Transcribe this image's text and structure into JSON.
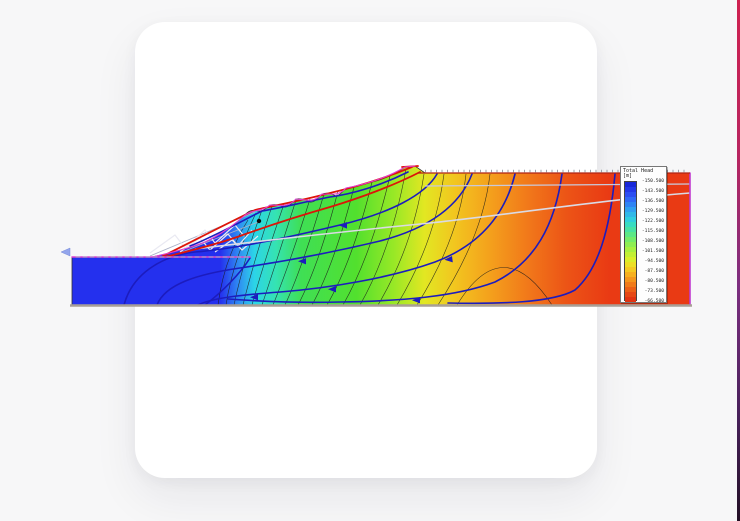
{
  "window": {
    "background_color": "#f7f7f8",
    "card_color": "#ffffff",
    "edge_stripe_colors": [
      "#cf2150",
      "#7c2e80",
      "#241026"
    ]
  },
  "legend": {
    "title": "Total Head",
    "unit": "[m]",
    "labels": [
      "-150.500",
      "-143.500",
      "-136.500",
      "-129.500",
      "-122.500",
      "-115.500",
      "-108.500",
      "-101.500",
      "-94.500",
      "-87.500",
      "-80.500",
      "-73.500",
      "-66.500"
    ],
    "colors": [
      "#1828d8",
      "#2238e8",
      "#2b4ef2",
      "#2f68f6",
      "#2f84f4",
      "#30a0f0",
      "#30b8e8",
      "#30cede",
      "#38dcc2",
      "#48e2a4",
      "#5ce886",
      "#74ec6a",
      "#8eee52",
      "#a8f041",
      "#c2f034",
      "#daee2b",
      "#ecdf25",
      "#f4c922",
      "#f6b01f",
      "#f4961d",
      "#f07b1a",
      "#ec6017",
      "#e64815",
      "#e23412"
    ]
  },
  "chart_data": {
    "type": "heatmap",
    "subtype": "contour-fill-cross-section",
    "title": "Total Head",
    "unit": "m",
    "legend_position": "right",
    "levels": [
      -150.5,
      -143.5,
      -136.5,
      -129.5,
      -122.5,
      -115.5,
      -108.5,
      -101.5,
      -94.5,
      -87.5,
      -80.5,
      -73.5,
      -66.5
    ],
    "level_step": 7,
    "orientation": "head increases from left (blue, -150.5) to right (red, -66.5) across an embankment slope cross-section",
    "overlays": [
      "equipotential/flow lines (dark blue, arrows toward lower-left)",
      "slip surface arcs (red)",
      "phreatic line (light gray)",
      "reservoir water level line (magenta, dashed gray)",
      "boundary hatching along top edge"
    ]
  }
}
